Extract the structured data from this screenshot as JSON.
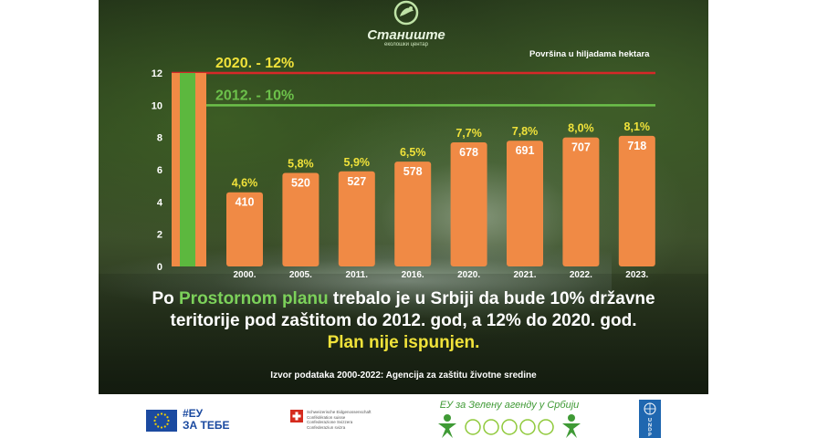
{
  "logo": {
    "name": "Станиште",
    "sub": "еколошки центар"
  },
  "unit_note": "Površina u hiljadama hektara",
  "chart_data": {
    "type": "bar",
    "categories": [
      "2000.",
      "2005.",
      "2011.",
      "2016.",
      "2020.",
      "2021.",
      "2022.",
      "2023."
    ],
    "values": [
      410,
      520,
      527,
      578,
      678,
      691,
      707,
      718
    ],
    "value_labels": [
      "410",
      "520",
      "527",
      "578",
      "678",
      "691",
      "707",
      "718"
    ],
    "percent_labels": [
      "4,6%",
      "5,8%",
      "5,9%",
      "6,5%",
      "7,7%",
      "7,8%",
      "8,0%",
      "8,1%"
    ],
    "percent_values": [
      4.6,
      5.8,
      5.9,
      6.5,
      7.7,
      7.8,
      8.0,
      8.1
    ],
    "yticks": [
      "0",
      "2",
      "4",
      "6",
      "8",
      "10",
      "12"
    ],
    "ylim": [
      0,
      12
    ],
    "reference_lines": [
      {
        "label": "2020. - 12%",
        "value": 12,
        "color": "#d62828"
      },
      {
        "label": "2012. - 10%",
        "value": 10,
        "color": "#6cc04a"
      }
    ],
    "target_bar": {
      "value": 12,
      "outer_color": "#f08a45",
      "inner_color": "#5cb83e"
    },
    "bar_color": "#f08a45",
    "percent_label_color": "#f0e23a",
    "grid": false,
    "title": "",
    "xlabel": "",
    "ylabel": ""
  },
  "caption": {
    "part1": "Po ",
    "highlight": "Prostornom planu",
    "part2": " trebalo je u  Srbiji  da bude 10% državne",
    "line2": "teritorije pod zaštitom do 2012. god, a 12% do 2020. god.",
    "line3": "Plan nije ispunjen."
  },
  "source": "Izvor podataka  2000-2022: Agencija za zaštitu životne sredine",
  "footer": {
    "eu_line1": "#ЕУ",
    "eu_line2": "ЗА ТЕБЕ",
    "swiss_lines": [
      "Schweizerische Eidgenossenschaft",
      "Confédération suisse",
      "Confederazione Svizzera",
      "Confederaziun svizra"
    ],
    "green_agenda": "ЕУ за Зелену агенду у Србији",
    "undp": "UNDP"
  }
}
